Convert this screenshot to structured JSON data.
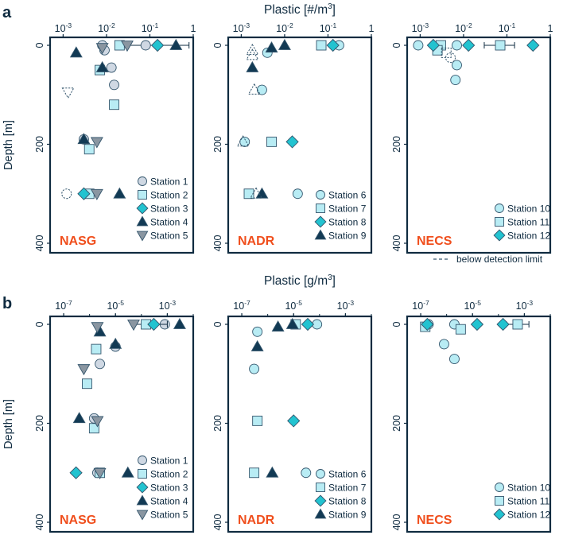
{
  "figure": {
    "depth_label": "Depth [m]",
    "depth_ticks": [
      "0",
      "200",
      "400"
    ],
    "detection_note": "below detection limit"
  },
  "colors": {
    "frame": "#0f2b40",
    "region": "#f04e1c",
    "sym_light": "#cfd8e3",
    "sym_cyan": "#b8ecf4",
    "sym_teal": "#22c3d0",
    "sym_navy": "#123a54",
    "sym_gray": "#8a96a1",
    "stroke": "#34566d"
  },
  "chart_data": [
    {
      "type": "scatter",
      "panel_letter": "a",
      "title": "Plastic [#/m3]",
      "title_main": "Plastic [#/m",
      "title_sup": "3",
      "title_end": "]",
      "xscale": "log",
      "xlim": [
        0.0005,
        1
      ],
      "ylim": [
        0,
        400
      ],
      "yinvert": true,
      "xticks": [
        0.001,
        0.01,
        0.1,
        1
      ],
      "xtick_labels": [
        {
          "base": "10",
          "exp": "-3"
        },
        {
          "base": "10",
          "exp": "-2"
        },
        {
          "base": "10",
          "exp": "-1"
        },
        {
          "base": "1",
          "exp": ""
        }
      ],
      "panels": [
        {
          "region": "NASG",
          "legend": [
            {
              "label": "Station 1",
              "shape": "circle",
              "color": "sym_light"
            },
            {
              "label": "Station 2",
              "shape": "square",
              "color": "sym_cyan"
            },
            {
              "label": "Station 3",
              "shape": "diamond",
              "color": "sym_teal"
            },
            {
              "label": "Station 4",
              "shape": "triangle",
              "color": "sym_navy"
            },
            {
              "label": "Station 5",
              "shape": "triangle-down",
              "color": "sym_gray"
            }
          ],
          "points": [
            {
              "s": 0,
              "x": 0.008,
              "y": 0
            },
            {
              "s": 0,
              "x": 0.009,
              "y": 10
            },
            {
              "s": 0,
              "x": 0.013,
              "y": 45
            },
            {
              "s": 0,
              "x": 0.015,
              "y": 80
            },
            {
              "s": 0,
              "x": 0.003,
              "y": 190
            },
            {
              "s": 0,
              "x": 0.0012,
              "y": 300,
              "bdl": true
            },
            {
              "s": 0,
              "x": 0.08,
              "y": 0,
              "err": [
                0.02,
                0.8
              ]
            },
            {
              "s": 1,
              "x": 0.02,
              "y": 0
            },
            {
              "s": 1,
              "x": 0.007,
              "y": 50
            },
            {
              "s": 1,
              "x": 0.015,
              "y": 120
            },
            {
              "s": 1,
              "x": 0.004,
              "y": 210
            },
            {
              "s": 1,
              "x": 0.004,
              "y": 300
            },
            {
              "s": 2,
              "x": 0.15,
              "y": 0
            },
            {
              "s": 2,
              "x": 0.003,
              "y": 300
            },
            {
              "s": 3,
              "x": 0.4,
              "y": 0
            },
            {
              "s": 3,
              "x": 0.002,
              "y": 15
            },
            {
              "s": 3,
              "x": 0.008,
              "y": 45
            },
            {
              "s": 3,
              "x": 0.003,
              "y": 190
            },
            {
              "s": 3,
              "x": 0.02,
              "y": 300
            },
            {
              "s": 4,
              "x": 0.03,
              "y": 0
            },
            {
              "s": 4,
              "x": 0.008,
              "y": 5
            },
            {
              "s": 4,
              "x": 0.0013,
              "y": 95,
              "bdl": true
            },
            {
              "s": 4,
              "x": 0.006,
              "y": 195
            },
            {
              "s": 4,
              "x": 0.006,
              "y": 300
            }
          ]
        },
        {
          "region": "NADR",
          "legend": [
            {
              "label": "Station 6",
              "shape": "circle",
              "color": "sym_cyan"
            },
            {
              "label": "Station 7",
              "shape": "square",
              "color": "sym_cyan"
            },
            {
              "label": "Station 8",
              "shape": "diamond",
              "color": "sym_teal"
            },
            {
              "label": "Station 9",
              "shape": "triangle",
              "color": "sym_navy"
            }
          ],
          "points": [
            {
              "s": 0,
              "x": 0.18,
              "y": 0
            },
            {
              "s": 0,
              "x": 0.004,
              "y": 15
            },
            {
              "s": 0,
              "x": 0.003,
              "y": 90
            },
            {
              "s": 0,
              "x": 0.0012,
              "y": 195
            },
            {
              "s": 0,
              "x": 0.02,
              "y": 300
            },
            {
              "s": 1,
              "x": 0.07,
              "y": 0
            },
            {
              "s": 1,
              "x": 0.0015,
              "y": 300
            },
            {
              "s": 1,
              "x": 0.005,
              "y": 195
            },
            {
              "s": 2,
              "x": 0.13,
              "y": 0
            },
            {
              "s": 2,
              "x": 0.015,
              "y": 195
            },
            {
              "s": 3,
              "x": 0.01,
              "y": 0
            },
            {
              "s": 3,
              "x": 0.005,
              "y": 5
            },
            {
              "s": 3,
              "x": 0.0018,
              "y": 45
            },
            {
              "s": 3,
              "x": 0.003,
              "y": 300
            },
            {
              "s": 3,
              "x": 0.0018,
              "y": 10,
              "bdl": true
            },
            {
              "s": 3,
              "x": 0.0018,
              "y": 20,
              "bdl": true
            },
            {
              "s": 3,
              "x": 0.002,
              "y": 90,
              "bdl": true
            },
            {
              "s": 3,
              "x": 0.0011,
              "y": 195,
              "bdl": true
            },
            {
              "s": 3,
              "x": 0.0022,
              "y": 300,
              "bdl": true
            }
          ]
        },
        {
          "region": "NECS",
          "legend": [
            {
              "label": "Station 10",
              "shape": "circle",
              "color": "sym_cyan"
            },
            {
              "label": "Station 11",
              "shape": "square",
              "color": "sym_cyan"
            },
            {
              "label": "Station 12",
              "shape": "diamond",
              "color": "sym_teal"
            }
          ],
          "points": [
            {
              "s": 0,
              "x": 0.0009,
              "y": 0
            },
            {
              "s": 0,
              "x": 0.007,
              "y": 0
            },
            {
              "s": 0,
              "x": 0.007,
              "y": 40
            },
            {
              "s": 0,
              "x": 0.0065,
              "y": 70
            },
            {
              "s": 0,
              "x": 0.005,
              "y": 25,
              "bdl": true
            },
            {
              "s": 1,
              "x": 0.07,
              "y": 0,
              "err": [
                0.03,
                0.15
              ]
            },
            {
              "s": 1,
              "x": 0.003,
              "y": 0
            },
            {
              "s": 1,
              "x": 0.0025,
              "y": 10
            },
            {
              "s": 1,
              "x": 0.004,
              "y": 15,
              "bdl": true
            },
            {
              "s": 2,
              "x": 0.4,
              "y": 0
            },
            {
              "s": 2,
              "x": 0.013,
              "y": 0
            },
            {
              "s": 2,
              "x": 0.002,
              "y": 0
            }
          ]
        }
      ]
    },
    {
      "type": "scatter",
      "panel_letter": "b",
      "title": "Plastic [g/m3]",
      "title_main": "Plastic [g/m",
      "title_sup": "3",
      "title_end": "]",
      "xscale": "log",
      "xlim": [
        3e-08,
        0.01
      ],
      "ylim": [
        0,
        400
      ],
      "yinvert": true,
      "xticks": [
        1e-07,
        1e-05,
        0.001
      ],
      "xtick_labels": [
        {
          "base": "10",
          "exp": "-7"
        },
        {
          "base": "10",
          "exp": "-5"
        },
        {
          "base": "10",
          "exp": "-3"
        }
      ],
      "panels": [
        {
          "region": "NASG",
          "legend": [
            {
              "label": "Station 1",
              "shape": "circle",
              "color": "sym_light"
            },
            {
              "label": "Station 2",
              "shape": "square",
              "color": "sym_cyan"
            },
            {
              "label": "Station 3",
              "shape": "diamond",
              "color": "sym_teal"
            },
            {
              "label": "Station 4",
              "shape": "triangle",
              "color": "sym_navy"
            },
            {
              "label": "Station 5",
              "shape": "triangle-down",
              "color": "sym_gray"
            }
          ],
          "points": [
            {
              "s": 0,
              "x": 0.0008,
              "y": 0
            },
            {
              "s": 0,
              "x": 1e-05,
              "y": 45
            },
            {
              "s": 0,
              "x": 2.5e-06,
              "y": 80
            },
            {
              "s": 0,
              "x": 1.5e-06,
              "y": 190
            },
            {
              "s": 0,
              "x": 2e-06,
              "y": 300
            },
            {
              "s": 1,
              "x": 0.00015,
              "y": 0,
              "err": [
                5e-05,
                0.001
              ]
            },
            {
              "s": 1,
              "x": 1.8e-06,
              "y": 50
            },
            {
              "s": 1,
              "x": 8e-07,
              "y": 120
            },
            {
              "s": 1,
              "x": 1.5e-06,
              "y": 210
            },
            {
              "s": 1,
              "x": 2.5e-06,
              "y": 300
            },
            {
              "s": 2,
              "x": 0.0003,
              "y": 0
            },
            {
              "s": 2,
              "x": 3e-07,
              "y": 300
            },
            {
              "s": 3,
              "x": 0.003,
              "y": 0
            },
            {
              "s": 3,
              "x": 2.5e-06,
              "y": 15
            },
            {
              "s": 3,
              "x": 1e-05,
              "y": 40
            },
            {
              "s": 3,
              "x": 4e-07,
              "y": 190
            },
            {
              "s": 3,
              "x": 3e-05,
              "y": 300
            },
            {
              "s": 4,
              "x": 5e-05,
              "y": 0
            },
            {
              "s": 4,
              "x": 2e-06,
              "y": 5
            },
            {
              "s": 4,
              "x": 6e-07,
              "y": 90
            },
            {
              "s": 4,
              "x": 2e-06,
              "y": 195
            },
            {
              "s": 4,
              "x": 2.5e-06,
              "y": 300
            }
          ]
        },
        {
          "region": "NADR",
          "legend": [
            {
              "label": "Station 6",
              "shape": "circle",
              "color": "sym_cyan"
            },
            {
              "label": "Station 7",
              "shape": "square",
              "color": "sym_cyan"
            },
            {
              "label": "Station 8",
              "shape": "diamond",
              "color": "sym_teal"
            },
            {
              "label": "Station 9",
              "shape": "triangle",
              "color": "sym_navy"
            }
          ],
          "points": [
            {
              "s": 0,
              "x": 8e-05,
              "y": 0
            },
            {
              "s": 0,
              "x": 4e-07,
              "y": 15
            },
            {
              "s": 0,
              "x": 3e-07,
              "y": 90
            },
            {
              "s": 0,
              "x": 3e-05,
              "y": 300
            },
            {
              "s": 1,
              "x": 1.2e-05,
              "y": 0
            },
            {
              "s": 1,
              "x": 4e-07,
              "y": 195
            },
            {
              "s": 1,
              "x": 3e-07,
              "y": 300
            },
            {
              "s": 2,
              "x": 3.5e-05,
              "y": 0
            },
            {
              "s": 2,
              "x": 1e-05,
              "y": 195
            },
            {
              "s": 3,
              "x": 9e-06,
              "y": 0
            },
            {
              "s": 3,
              "x": 2.5e-06,
              "y": 5
            },
            {
              "s": 3,
              "x": 4e-07,
              "y": 45
            },
            {
              "s": 3,
              "x": 1.5e-06,
              "y": 300
            }
          ]
        },
        {
          "region": "NECS",
          "legend": [
            {
              "label": "Station 10",
              "shape": "circle",
              "color": "sym_cyan"
            },
            {
              "label": "Station 11",
              "shape": "square",
              "color": "sym_cyan"
            },
            {
              "label": "Station 12",
              "shape": "diamond",
              "color": "sym_teal"
            }
          ],
          "points": [
            {
              "s": 0,
              "x": 2e-07,
              "y": 0
            },
            {
              "s": 0,
              "x": 2e-06,
              "y": 0
            },
            {
              "s": 0,
              "x": 8e-07,
              "y": 40
            },
            {
              "s": 0,
              "x": 2e-06,
              "y": 70
            },
            {
              "s": 1,
              "x": 0.00055,
              "y": 0,
              "err": [
                0.0002,
                0.0015
              ]
            },
            {
              "s": 1,
              "x": 3.5e-06,
              "y": 10
            },
            {
              "s": 1,
              "x": 1.5e-07,
              "y": 5
            },
            {
              "s": 2,
              "x": 0.00015,
              "y": 0
            },
            {
              "s": 2,
              "x": 1.5e-05,
              "y": 0
            },
            {
              "s": 2,
              "x": 1.8e-07,
              "y": 0
            }
          ]
        }
      ]
    }
  ]
}
